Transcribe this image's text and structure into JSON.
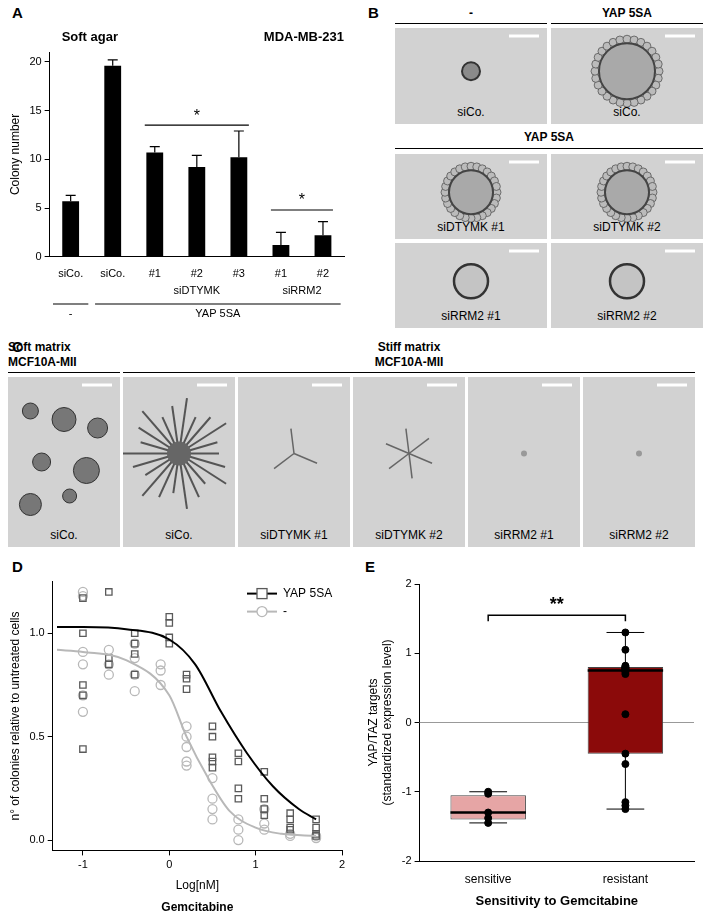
{
  "chart_data": [
    {
      "panel": "A",
      "type": "bar",
      "title": "Soft agar",
      "subtitle": "MDA-MB-231",
      "categories": [
        "siCo.",
        "siCo.",
        "#1",
        "#2",
        "#3",
        "#1",
        "#2"
      ],
      "values": [
        5.7,
        19.6,
        10.7,
        9.2,
        10.2,
        1.2,
        2.2
      ],
      "error": [
        0.6,
        0.6,
        0.6,
        1.2,
        2.7,
        1.3,
        1.4
      ],
      "color": "#000000",
      "y_label": "Colony number",
      "ylim": [
        0,
        21
      ],
      "yticks": [
        0,
        5,
        10,
        15,
        20
      ],
      "grid": false,
      "groups": [
        {
          "label": "siDTYMK",
          "from": 2,
          "to": 4
        },
        {
          "label": "siRRM2",
          "from": 5,
          "to": 6
        }
      ],
      "conditions": [
        {
          "label": "-",
          "from": 0,
          "to": 0
        },
        {
          "label": "YAP 5SA",
          "from": 1,
          "to": 6
        }
      ],
      "significance": [
        {
          "label": "*",
          "from": 2,
          "to": 4,
          "y": 13.5
        },
        {
          "label": "*",
          "from": 5,
          "to": 6,
          "y": 4.8
        }
      ]
    },
    {
      "panel": "D",
      "type": "scatter",
      "x_label": "Log[nM]",
      "x_sublabel": "Gemcitabine",
      "y_label": "n° of colonies relative to untreated cells",
      "xlim": [
        -1.35,
        2
      ],
      "xticks": [
        -1,
        0,
        1,
        2
      ],
      "ylim": [
        -0.05,
        1.25
      ],
      "yticks": [
        {
          "value": 0,
          "label": "0.0"
        },
        {
          "value": 0.5,
          "label": "0.5"
        },
        {
          "value": 1,
          "label": "1.0"
        }
      ],
      "grid": false,
      "legend": "top-right",
      "series": [
        {
          "name": "YAP 5SA",
          "color": "#5a5a5a",
          "marker": "square",
          "x": [
            -1,
            -1,
            -1,
            -1,
            -1,
            -0.7,
            -0.7,
            -0.7,
            -0.4,
            -0.4,
            -0.4,
            -0.4,
            0,
            0,
            0,
            0,
            0.2,
            0.2,
            0.2,
            0.5,
            0.5,
            0.5,
            0.5,
            0.5,
            0.8,
            0.8,
            0.8,
            0.8,
            1.1,
            1.1,
            1.1,
            1.1,
            1.4,
            1.4,
            1.4,
            1.4,
            1.7,
            1.7,
            1.7,
            1.7
          ],
          "values": [
            0.44,
            0.7,
            0.75,
            1.0,
            1.17,
            1.2,
            0.88,
            0.85,
            0.8,
            0.9,
            0.95,
            1.0,
            0.95,
            0.98,
            1.05,
            1.08,
            0.73,
            0.78,
            0.8,
            0.35,
            0.38,
            0.4,
            0.5,
            0.55,
            0.2,
            0.25,
            0.38,
            0.42,
            0.12,
            0.15,
            0.2,
            0.33,
            0.05,
            0.06,
            0.1,
            0.13,
            0.02,
            0.03,
            0.06,
            0.1
          ],
          "curve": {
            "color": "#000000",
            "x": [
              -1.3,
              -1,
              -0.5,
              0,
              0.3,
              0.6,
              0.9,
              1.2,
              1.5,
              1.7
            ],
            "values": [
              1.03,
              1.03,
              1.02,
              0.97,
              0.85,
              0.62,
              0.42,
              0.26,
              0.15,
              0.1
            ]
          }
        },
        {
          "name": "-",
          "color": "#b8b8b8",
          "marker": "circle",
          "x": [
            -1,
            -1,
            -1,
            -1,
            -1,
            -1,
            -0.7,
            -0.7,
            -0.7,
            -0.4,
            -0.4,
            -0.4,
            -0.4,
            -0.1,
            -0.1,
            -0.1,
            0.2,
            0.2,
            0.2,
            0.2,
            0.2,
            0.5,
            0.5,
            0.5,
            0.5,
            0.8,
            0.8,
            0.8,
            1.1,
            1.1,
            1.1,
            1.4,
            1.4,
            1.7,
            1.7
          ],
          "values": [
            1.18,
            1.2,
            0.91,
            0.85,
            0.7,
            0.62,
            0.8,
            0.85,
            0.92,
            0.72,
            0.8,
            0.88,
            0.95,
            0.75,
            0.82,
            0.85,
            0.36,
            0.38,
            0.45,
            0.5,
            0.55,
            0.1,
            0.15,
            0.2,
            0.3,
            0.0,
            0.05,
            0.1,
            0.05,
            0.08,
            0.15,
            0.02,
            0.03,
            0.01,
            0.02
          ],
          "curve": {
            "color": "#b8b8b8",
            "x": [
              -1.3,
              -1,
              -0.5,
              0,
              0.2,
              0.45,
              0.7,
              1,
              1.3,
              1.7
            ],
            "values": [
              0.92,
              0.91,
              0.87,
              0.7,
              0.5,
              0.3,
              0.14,
              0.06,
              0.03,
              0.02
            ]
          }
        }
      ]
    },
    {
      "panel": "E",
      "type": "box",
      "categories": [
        "sensitive",
        "resistant"
      ],
      "colors": [
        "#e6a5a5",
        "#8b0a0a"
      ],
      "box": [
        {
          "min": -1.45,
          "q1": -1.4,
          "median": -1.3,
          "q3": -1.05,
          "max": -1.0
        },
        {
          "min": -1.25,
          "q1": -0.45,
          "median": 0.75,
          "q3": 0.8,
          "max": 1.3
        }
      ],
      "points": [
        [
          -1.0,
          -1.03,
          -1.3,
          -1.38,
          -1.45
        ],
        [
          1.3,
          1.05,
          0.82,
          0.8,
          0.8,
          0.79,
          0.78,
          0.77,
          0.76,
          0.75,
          0.73,
          0.7,
          0.12,
          -0.45,
          -0.6,
          -1.15,
          -1.2,
          -1.25
        ]
      ],
      "y_label": [
        "YAP/TAZ targets",
        "(standardized expression level)"
      ],
      "x_label": "Sensitivity to Gemcitabine",
      "ylim": [
        -2,
        2
      ],
      "yticks": [
        -2,
        -1,
        0,
        1,
        2
      ],
      "grid": false,
      "reference_line": 0,
      "significance": [
        {
          "label": "**",
          "from": 0,
          "to": 1,
          "y": 1.55
        }
      ]
    }
  ],
  "image_panels": [
    {
      "panel": "B",
      "sections": [
        {
          "headers": [
            "-",
            "YAP 5SA"
          ],
          "images": [
            "siCo.",
            "siCo."
          ]
        },
        {
          "headers": [
            "YAP 5SA"
          ],
          "images": [
            "siDTYMK #1",
            "siDTYMK #2",
            "siRRM2 #1",
            "siRRM2 #2"
          ]
        }
      ]
    },
    {
      "panel": "C",
      "sections": [
        {
          "headers": [
            "Soft matrix",
            "MCF10A-MII"
          ],
          "images": [
            "siCo."
          ]
        },
        {
          "headers": [
            "Stiff matrix",
            "MCF10A-MII"
          ],
          "images": [
            "siCo.",
            "siDTYMK #1",
            "siDTYMK #2",
            "siRRM2 #1",
            "siRRM2 #2"
          ]
        }
      ]
    }
  ]
}
